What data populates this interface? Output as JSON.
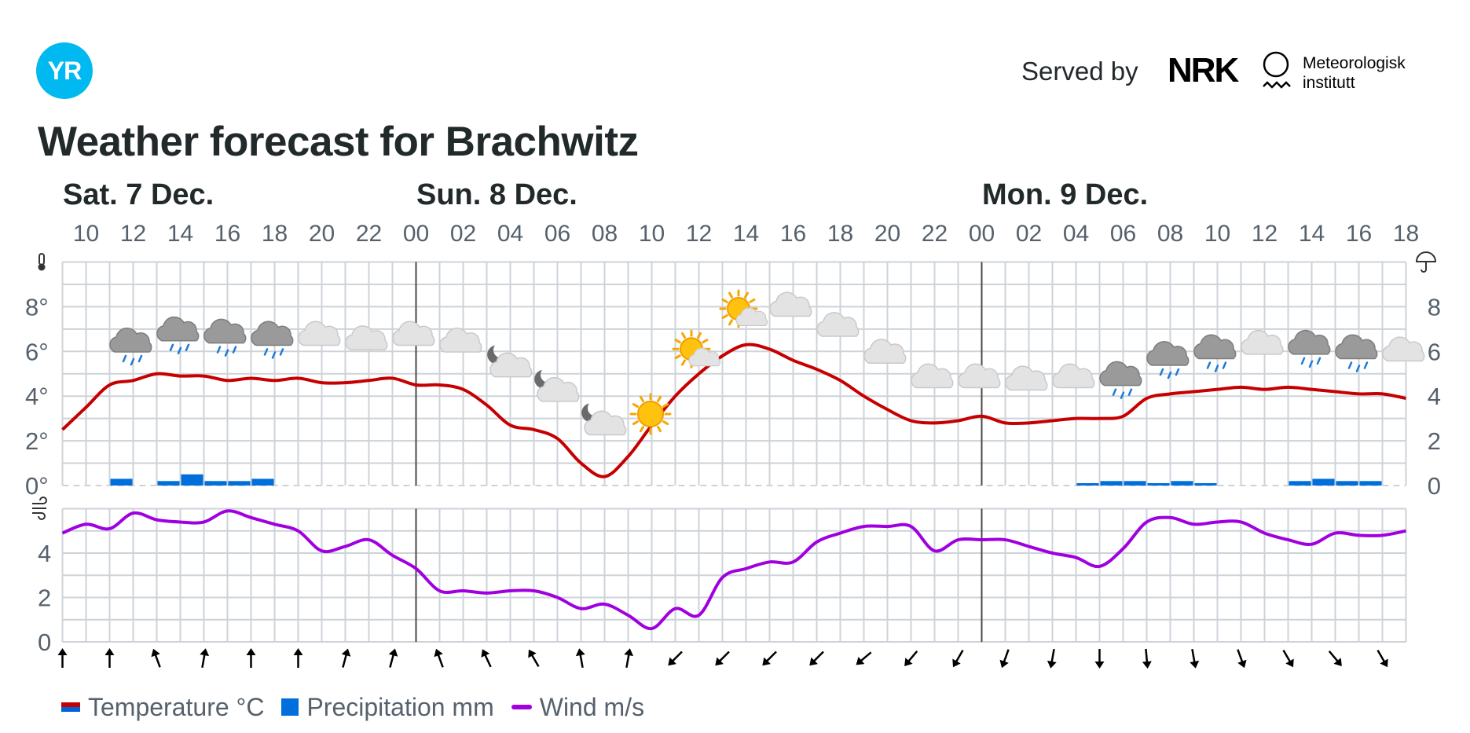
{
  "header": {
    "logo_text": "YR",
    "served_by": "Served by",
    "partner_logo_text": "NRK",
    "institute_line1": "Meteorologisk",
    "institute_line2": "institutt"
  },
  "title": "Weather forecast for Brachwitz",
  "colors": {
    "temperature": "#c60000",
    "precipitation": "#006edb",
    "wind": "#a000e0",
    "grid": "#cdd3d9",
    "day_divider": "#4a4a4a"
  },
  "chart_data": {
    "type": "line",
    "start_hour": 9,
    "hour_count": 58,
    "day_labels": [
      {
        "label": "Sat. 7 Dec.",
        "hour_index": 0
      },
      {
        "label": "Sun. 8 Dec.",
        "hour_index": 15
      },
      {
        "label": "Mon. 9 Dec.",
        "hour_index": 39
      }
    ],
    "day_divider_hour_index": [
      15,
      39
    ],
    "tick_labels": [
      "10",
      "12",
      "14",
      "16",
      "18",
      "20",
      "22",
      "00",
      "02",
      "04",
      "06",
      "08",
      "10",
      "12",
      "14",
      "16",
      "18",
      "20",
      "22",
      "00",
      "02",
      "04",
      "06",
      "08",
      "10",
      "12",
      "14",
      "16",
      "18"
    ],
    "temperature": {
      "name": "Temperature °C",
      "axis_ticks": [
        "0°",
        "2°",
        "4°",
        "6°",
        "8°"
      ],
      "ylim": [
        0,
        10
      ],
      "values": [
        2.5,
        3.5,
        4.5,
        4.7,
        5.0,
        4.9,
        4.9,
        4.7,
        4.8,
        4.7,
        4.8,
        4.6,
        4.6,
        4.7,
        4.8,
        4.5,
        4.5,
        4.3,
        3.6,
        2.7,
        2.5,
        2.1,
        1.0,
        0.4,
        1.3,
        2.7,
        4.0,
        5.0,
        5.8,
        6.3,
        6.1,
        5.6,
        5.2,
        4.7,
        4.0,
        3.4,
        2.9,
        2.8,
        2.9,
        3.1,
        2.8,
        2.8,
        2.9,
        3.0,
        3.0,
        3.1,
        3.9,
        4.1,
        4.2,
        4.3,
        4.4,
        4.3,
        4.4,
        4.3,
        4.2,
        4.1,
        4.1,
        3.9
      ]
    },
    "precipitation": {
      "name": "Precipitation mm",
      "axis_ticks": [
        "0",
        "2",
        "4",
        "6",
        "8"
      ],
      "bars": [
        {
          "hour_index": 2,
          "value": 0.3
        },
        {
          "hour_index": 4,
          "value": 0.2
        },
        {
          "hour_index": 5,
          "value": 0.5
        },
        {
          "hour_index": 6,
          "value": 0.2
        },
        {
          "hour_index": 7,
          "value": 0.2
        },
        {
          "hour_index": 8,
          "value": 0.3
        },
        {
          "hour_index": 43,
          "value": 0.1
        },
        {
          "hour_index": 44,
          "value": 0.2
        },
        {
          "hour_index": 45,
          "value": 0.2
        },
        {
          "hour_index": 46,
          "value": 0.1
        },
        {
          "hour_index": 47,
          "value": 0.2
        },
        {
          "hour_index": 48,
          "value": 0.1
        },
        {
          "hour_index": 52,
          "value": 0.2
        },
        {
          "hour_index": 53,
          "value": 0.3
        },
        {
          "hour_index": 54,
          "value": 0.2
        },
        {
          "hour_index": 55,
          "value": 0.2
        }
      ]
    },
    "wind": {
      "name": "Wind m/s",
      "axis_ticks": [
        "0",
        "2",
        "4"
      ],
      "ylim": [
        0,
        6
      ],
      "values": [
        4.9,
        5.3,
        5.1,
        5.8,
        5.5,
        5.4,
        5.4,
        5.9,
        5.6,
        5.3,
        5.0,
        4.1,
        4.3,
        4.6,
        3.9,
        3.3,
        2.3,
        2.3,
        2.2,
        2.3,
        2.3,
        2.0,
        1.5,
        1.7,
        1.2,
        0.6,
        1.5,
        1.2,
        2.9,
        3.3,
        3.6,
        3.6,
        4.5,
        4.9,
        5.2,
        5.2,
        5.2,
        4.1,
        4.6,
        4.6,
        4.6,
        4.3,
        4.0,
        3.8,
        3.4,
        4.2,
        5.4,
        5.6,
        5.3,
        5.4,
        5.4,
        4.9,
        4.6,
        4.4,
        4.9,
        4.8,
        4.8,
        5.0
      ],
      "direction_deg": [
        0,
        0,
        -20,
        10,
        0,
        0,
        15,
        15,
        -20,
        -25,
        -30,
        -10,
        10,
        -135,
        -135,
        -135,
        -135,
        -130,
        -140,
        -150,
        -160,
        -170,
        180,
        175,
        170,
        160,
        150,
        140,
        150
      ]
    },
    "weather_icons": [
      {
        "hour_index": 2,
        "icon": "cloud-rain-icon"
      },
      {
        "hour_index": 4,
        "icon": "cloud-rain-icon"
      },
      {
        "hour_index": 6,
        "icon": "cloud-rain-icon"
      },
      {
        "hour_index": 8,
        "icon": "cloud-rain-icon"
      },
      {
        "hour_index": 10,
        "icon": "cloud-icon"
      },
      {
        "hour_index": 12,
        "icon": "cloud-icon"
      },
      {
        "hour_index": 14,
        "icon": "cloud-icon"
      },
      {
        "hour_index": 16,
        "icon": "cloud-icon"
      },
      {
        "hour_index": 18,
        "icon": "cloud-moon-icon"
      },
      {
        "hour_index": 20,
        "icon": "cloud-moon-icon"
      },
      {
        "hour_index": 22,
        "icon": "cloud-moon-icon"
      },
      {
        "hour_index": 24,
        "icon": "sun-icon"
      },
      {
        "hour_index": 26,
        "icon": "sun-cloud-icon"
      },
      {
        "hour_index": 28,
        "icon": "sun-cloud-icon"
      },
      {
        "hour_index": 30,
        "icon": "cloud-icon"
      },
      {
        "hour_index": 32,
        "icon": "cloud-icon"
      },
      {
        "hour_index": 34,
        "icon": "cloud-icon"
      },
      {
        "hour_index": 36,
        "icon": "cloud-icon"
      },
      {
        "hour_index": 38,
        "icon": "cloud-icon"
      },
      {
        "hour_index": 40,
        "icon": "cloud-icon"
      },
      {
        "hour_index": 42,
        "icon": "cloud-icon"
      },
      {
        "hour_index": 44,
        "icon": "cloud-rain-icon"
      },
      {
        "hour_index": 46,
        "icon": "cloud-rain-icon"
      },
      {
        "hour_index": 48,
        "icon": "cloud-rain-icon"
      },
      {
        "hour_index": 50,
        "icon": "cloud-icon"
      },
      {
        "hour_index": 52,
        "icon": "cloud-rain-icon"
      },
      {
        "hour_index": 54,
        "icon": "cloud-rain-icon"
      },
      {
        "hour_index": 56,
        "icon": "cloud-icon"
      }
    ],
    "legend": [
      "Temperature °C",
      "Precipitation mm",
      "Wind m/s"
    ]
  }
}
